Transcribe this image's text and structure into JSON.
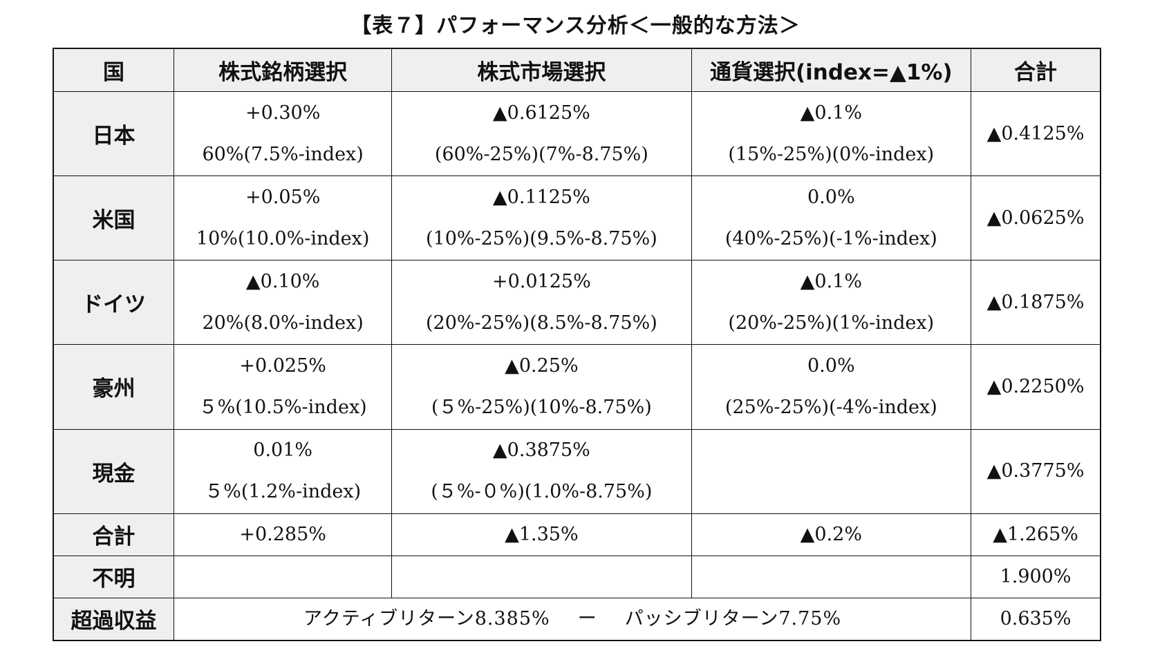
{
  "title": "【表７】パフォーマンス分析＜一般的な方法＞",
  "columns": {
    "country": "国",
    "stock_selection": "株式銘柄選択",
    "market_selection": "株式市場選択",
    "currency_selection": "通貨選択(index=▲1%)",
    "total": "合計"
  },
  "rows": [
    {
      "name": "日本",
      "stock": {
        "value": "+0.30%",
        "detail": "60%(7.5%-index)"
      },
      "market": {
        "value": "▲0.6125%",
        "detail": "(60%-25%)(7%-8.75%)"
      },
      "currency": {
        "value": "▲0.1%",
        "detail": "(15%-25%)(0%-index)"
      },
      "total": "▲0.4125%"
    },
    {
      "name": "米国",
      "stock": {
        "value": "+0.05%",
        "detail": "10%(10.0%-index)"
      },
      "market": {
        "value": "▲0.1125%",
        "detail": "(10%-25%)(9.5%-8.75%)"
      },
      "currency": {
        "value": "0.0%",
        "detail": "(40%-25%)(-1%-index)"
      },
      "total": "▲0.0625%"
    },
    {
      "name": "ドイツ",
      "stock": {
        "value": "▲0.10%",
        "detail": "20%(8.0%-index)"
      },
      "market": {
        "value": "+0.0125%",
        "detail": "(20%-25%)(8.5%-8.75%)"
      },
      "currency": {
        "value": "▲0.1%",
        "detail": "(20%-25%)(1%-index)"
      },
      "total": "▲0.1875%"
    },
    {
      "name": "豪州",
      "stock": {
        "value": "+0.025%",
        "detail": "５%(10.5%-index)"
      },
      "market": {
        "value": "▲0.25%",
        "detail": "(５%-25%)(10%-8.75%)"
      },
      "currency": {
        "value": "0.0%",
        "detail": "(25%-25%)(-4%-index)"
      },
      "total": "▲0.2250%"
    },
    {
      "name": "現金",
      "stock": {
        "value": "0.01%",
        "detail": "５%(1.2%-index)"
      },
      "market": {
        "value": "▲0.3875%",
        "detail": "(５%-０%)(1.0%-8.75%)"
      },
      "currency": {
        "value": "",
        "detail": ""
      },
      "total": "▲0.3775%"
    }
  ],
  "sum_row": {
    "name": "合計",
    "stock": "+0.285%",
    "market": "▲1.35%",
    "currency": "▲0.2%",
    "total": "▲1.265%"
  },
  "unknown_row": {
    "name": "不明",
    "total": "1.900%"
  },
  "excess_row": {
    "name": "超過収益",
    "active": "アクティブリターン8.385%",
    "minus": "ー",
    "passive": "パッシブリターン7.75%",
    "total": "0.635%"
  }
}
